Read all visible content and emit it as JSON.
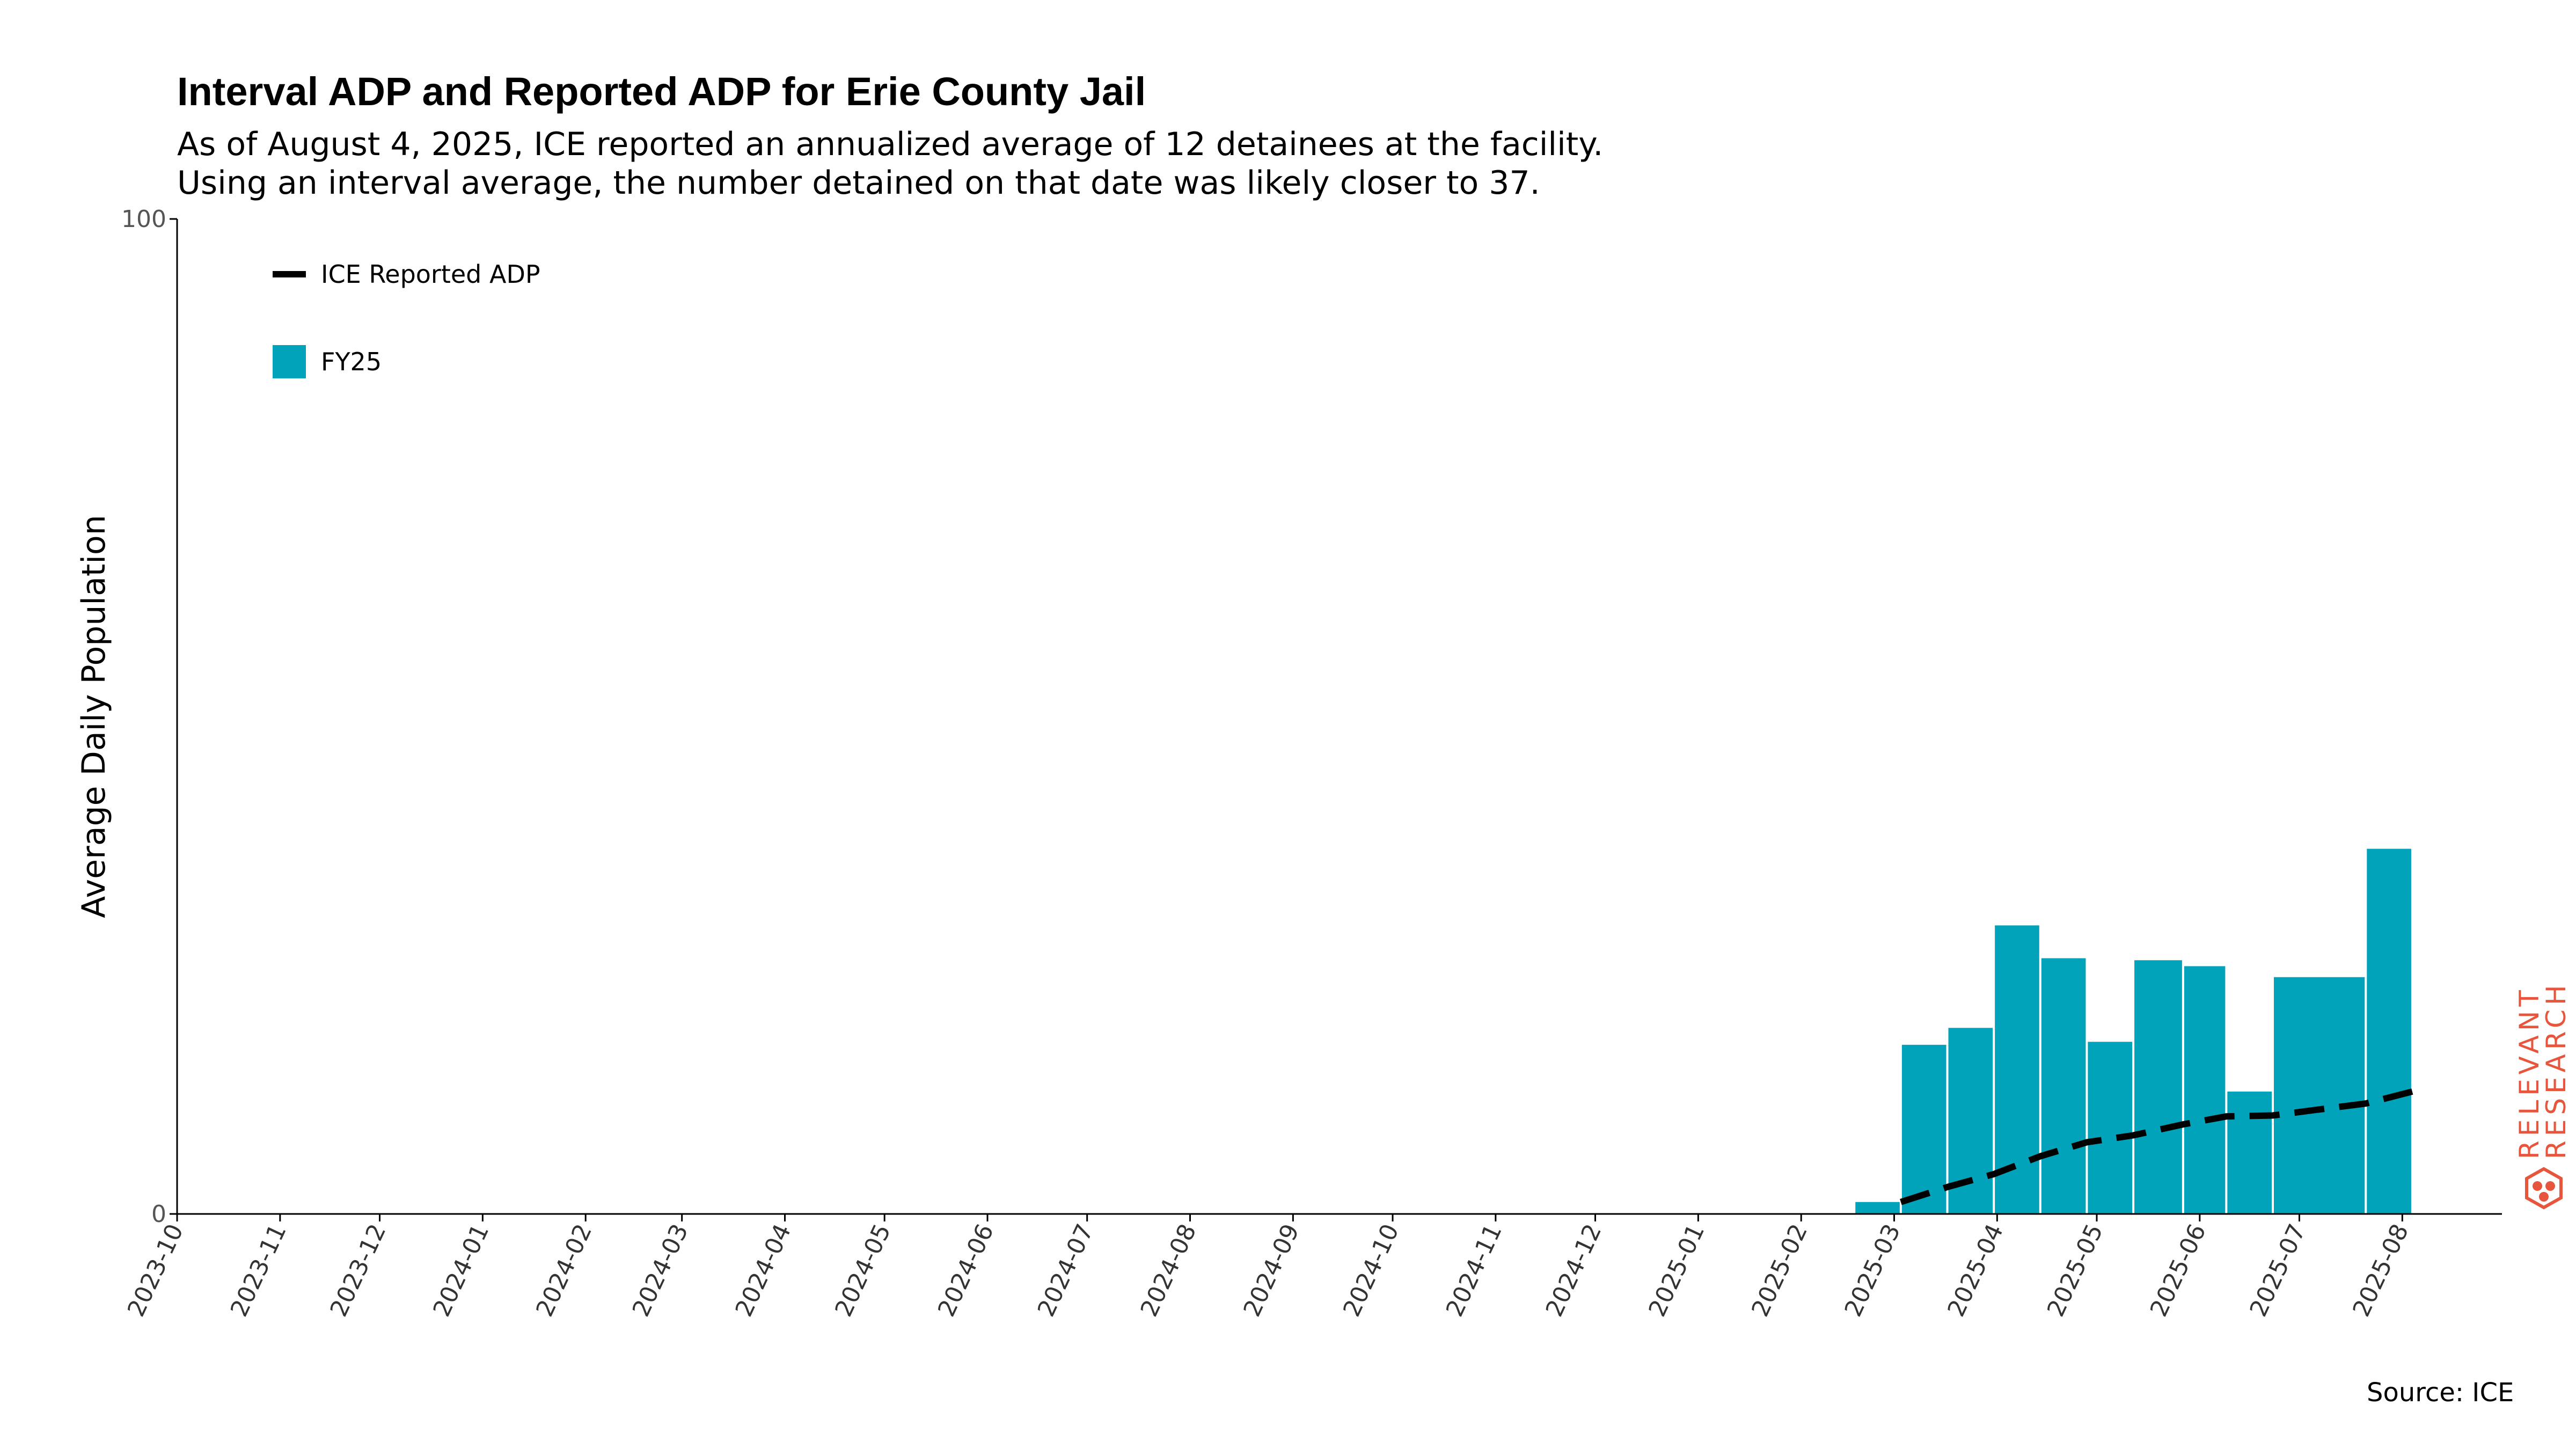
{
  "chart_data": {
    "type": "bar",
    "title": "Interval ADP and Reported ADP for Erie County Jail",
    "subtitle": [
      "As of August 4, 2025, ICE reported an annualized average of 12 detainees at the facility.",
      "Using an interval average, the number detained on that date was likely closer to 37."
    ],
    "ylabel": "Average Daily Population",
    "xlabel": "",
    "ylim": [
      0,
      100
    ],
    "yticks": [
      "0",
      "100"
    ],
    "xlim": [
      "2023-10-01",
      "2025-08-31"
    ],
    "xticks": [
      "2023-10",
      "2023-11",
      "2023-12",
      "2024-01",
      "2024-02",
      "2024-03",
      "2024-04",
      "2024-05",
      "2024-06",
      "2024-07",
      "2024-08",
      "2024-09",
      "2024-10",
      "2024-11",
      "2024-12",
      "2025-01",
      "2025-02",
      "2025-03",
      "2025-04",
      "2025-05",
      "2025-06",
      "2025-07",
      "2025-08"
    ],
    "bar_series": {
      "name": "FY25",
      "color": "#00a3b9",
      "bars": [
        {
          "start": "2025-02-17",
          "end": "2025-03-03",
          "value": 1.2
        },
        {
          "start": "2025-03-03",
          "end": "2025-03-17",
          "value": 17
        },
        {
          "start": "2025-03-17",
          "end": "2025-03-31",
          "value": 18.7
        },
        {
          "start": "2025-03-31",
          "end": "2025-04-14",
          "value": 29
        },
        {
          "start": "2025-04-14",
          "end": "2025-04-28",
          "value": 25.7
        },
        {
          "start": "2025-04-28",
          "end": "2025-05-12",
          "value": 17.3
        },
        {
          "start": "2025-05-12",
          "end": "2025-05-27",
          "value": 25.5
        },
        {
          "start": "2025-05-27",
          "end": "2025-06-09",
          "value": 24.9
        },
        {
          "start": "2025-06-09",
          "end": "2025-06-23",
          "value": 12.3
        },
        {
          "start": "2025-06-23",
          "end": "2025-07-21",
          "value": 23.8
        },
        {
          "start": "2025-07-21",
          "end": "2025-08-04",
          "value": 36.7
        }
      ]
    },
    "line_series": {
      "name": "ICE Reported ADP",
      "style": "dashed",
      "color": "#000000",
      "points": [
        {
          "x": "2025-03-03",
          "y": 1.2
        },
        {
          "x": "2025-03-17",
          "y": 2.7
        },
        {
          "x": "2025-03-31",
          "y": 4.0
        },
        {
          "x": "2025-04-14",
          "y": 5.8
        },
        {
          "x": "2025-04-28",
          "y": 7.2
        },
        {
          "x": "2025-05-12",
          "y": 7.9
        },
        {
          "x": "2025-05-27",
          "y": 9.0
        },
        {
          "x": "2025-06-09",
          "y": 9.8
        },
        {
          "x": "2025-06-23",
          "y": 9.9
        },
        {
          "x": "2025-07-07",
          "y": 10.5
        },
        {
          "x": "2025-07-21",
          "y": 11.1
        },
        {
          "x": "2025-08-04",
          "y": 12.3
        }
      ]
    },
    "legend": {
      "placement": "top-left",
      "entries": [
        "ICE Reported ADP",
        "FY25"
      ]
    },
    "grid": false,
    "source": "Source: ICE"
  },
  "branding": {
    "line1": "RELEVANT",
    "line2": "RESEARCH",
    "color": "#e8553d"
  }
}
